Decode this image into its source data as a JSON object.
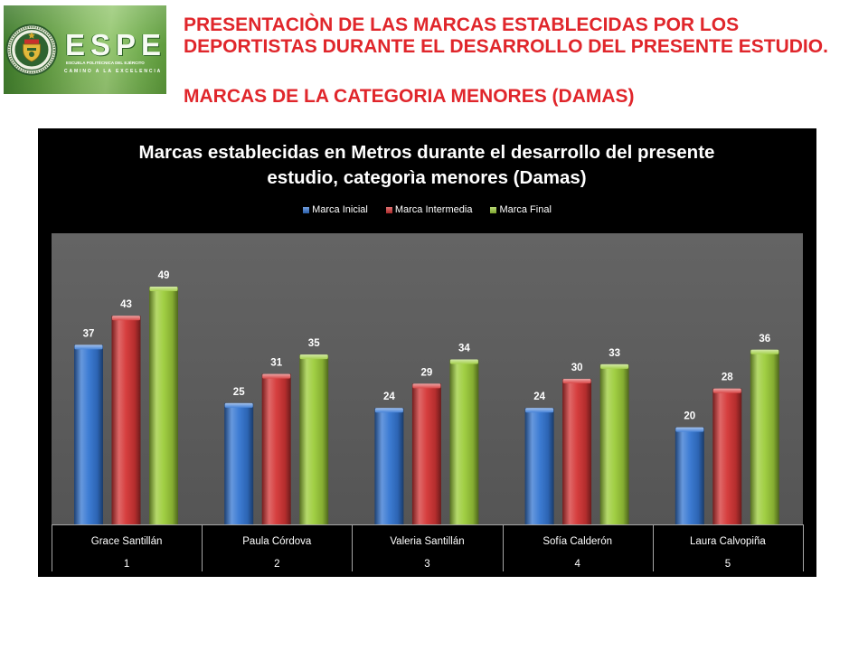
{
  "logo": {
    "wordmark": "ESPE",
    "school_name": "ESCUELA POLITÉCNICA DEL EJÉRCITO",
    "motto": "CAMINO A LA EXCELENCIA",
    "seal_icon": "espe-seal-icon"
  },
  "heading": {
    "title": "PRESENTACIÒN DE LAS MARCAS ESTABLECIDAS POR LOS DEPORTISTAS DURANTE EL DESARROLLO DEL PRESENTE ESTUDIO.",
    "category": "MARCAS DE LA CATEGORIA MENORES (DAMAS)",
    "color": "#e0262b"
  },
  "chart_data": {
    "type": "bar",
    "title": "Marcas establecidas en Metros durante el desarrollo del presente estudio, categorìa menores (Damas)",
    "xlabel": "",
    "ylabel": "",
    "categories": [
      "Grace Santillán",
      "Paula Córdova",
      "Valeria Santillán",
      "Sofía Calderón",
      "Laura Calvopiña"
    ],
    "category_numbers": [
      "1",
      "2",
      "3",
      "4",
      "5"
    ],
    "series": [
      {
        "name": "Marca Inicial",
        "values": [
          37,
          25,
          24,
          24,
          20
        ],
        "color": "#3476d2"
      },
      {
        "name": "Marca Intermedia",
        "values": [
          43,
          31,
          29,
          30,
          28
        ],
        "color": "#d43535"
      },
      {
        "name": "Marca Final",
        "values": [
          49,
          35,
          34,
          33,
          36
        ],
        "color": "#9ccc3a"
      }
    ],
    "ylim": [
      0,
      60
    ],
    "grid": false,
    "legend": "top",
    "data_labels": true,
    "background": "#000000",
    "plot_background": "#5a5a5a"
  }
}
